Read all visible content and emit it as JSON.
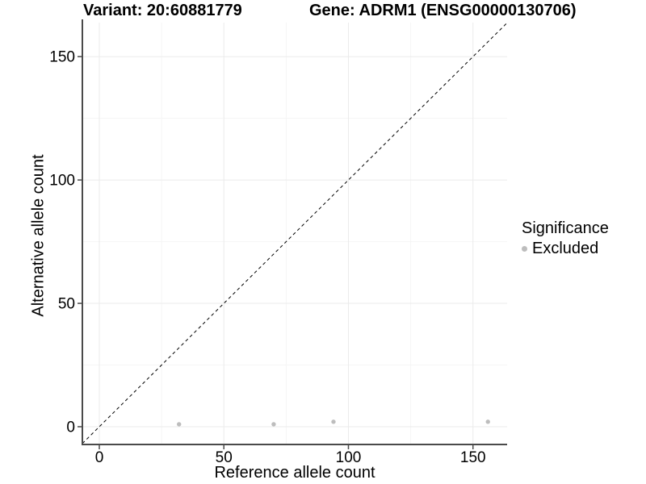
{
  "titles": {
    "variant": "Variant: 20:60881779",
    "gene": "Gene: ADRM1 (ENSG00000130706)"
  },
  "chart_data": {
    "type": "scatter",
    "title": "Variant: 20:60881779   Gene: ADRM1 (ENSG00000130706)",
    "xlabel": "Reference allele count",
    "ylabel": "Alternative allele count",
    "xlim": [
      -6.8,
      163.7
    ],
    "ylim": [
      -7.2,
      163.8
    ],
    "x_major_ticks": [
      0,
      50,
      100,
      150
    ],
    "y_major_ticks": [
      0,
      50,
      100,
      150
    ],
    "x_minor_ticks": [
      25,
      75,
      125
    ],
    "y_minor_ticks": [
      25,
      75,
      125
    ],
    "grid": true,
    "legend_position": "right",
    "identity_line": {
      "slope": 1,
      "intercept": 0,
      "style": "dashed",
      "color": "#000000"
    },
    "series": [
      {
        "name": "Excluded",
        "color": "#bdbdbd",
        "points": [
          {
            "x": 32,
            "y": 1
          },
          {
            "x": 70,
            "y": 1
          },
          {
            "x": 94,
            "y": 2
          },
          {
            "x": 156,
            "y": 2
          }
        ]
      }
    ],
    "legend": {
      "title": "Significance",
      "entries": [
        {
          "label": "Excluded",
          "color": "#bdbdbd"
        }
      ]
    },
    "colors": {
      "axis_line": "#4a4a4a",
      "major_grid": "#ebebeb",
      "minor_grid": "#f5f5f5",
      "tick_label": "#000000",
      "background": "#ffffff"
    }
  }
}
